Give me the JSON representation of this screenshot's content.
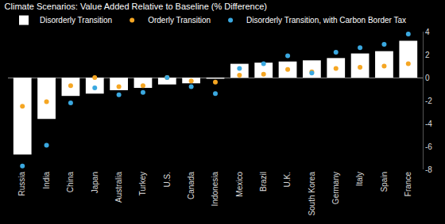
{
  "chart_data": {
    "type": "bar",
    "title": "Climate Scenarios: Value Added Relative to Baseline (% Difference)",
    "categories": [
      "Russia",
      "India",
      "China",
      "Japan",
      "Australia",
      "Turkey",
      "U.S.",
      "Canada",
      "Indonesia",
      "Mexico",
      "Brazil",
      "U.K.",
      "South Korea",
      "Germany",
      "Italy",
      "Spain",
      "France"
    ],
    "series": [
      {
        "name": "Disorderly Transition",
        "type": "bar",
        "color": "#ffffff",
        "values": [
          -6.7,
          -3.6,
          -1.6,
          -1.4,
          -1.1,
          -0.9,
          -0.6,
          -0.5,
          -0.1,
          1.2,
          1.3,
          1.4,
          1.5,
          1.7,
          2.1,
          2.3,
          3.2
        ]
      },
      {
        "name": "Orderly Transition",
        "type": "scatter",
        "marker": "circle",
        "color": "#f5a623",
        "values": [
          -2.5,
          -2.1,
          -0.7,
          0.0,
          -0.8,
          -0.7,
          0.0,
          -0.3,
          -0.4,
          0.2,
          0.3,
          0.7,
          0.5,
          0.8,
          0.9,
          1.0,
          1.2
        ]
      },
      {
        "name": "Disorderly Transition, with Carbon Border Tax",
        "type": "scatter",
        "marker": "circle",
        "color": "#3aa8e0",
        "values": [
          -7.7,
          -5.9,
          -2.2,
          -0.9,
          -1.5,
          -1.3,
          0.0,
          -0.8,
          -1.4,
          0.8,
          1.2,
          1.9,
          0.4,
          2.2,
          2.6,
          2.9,
          3.8
        ]
      }
    ],
    "ylim": [
      -8,
      4
    ],
    "yticks": [
      -8,
      -6,
      -4,
      -2,
      0,
      2,
      4
    ],
    "grid": false,
    "legend": "top-left"
  }
}
